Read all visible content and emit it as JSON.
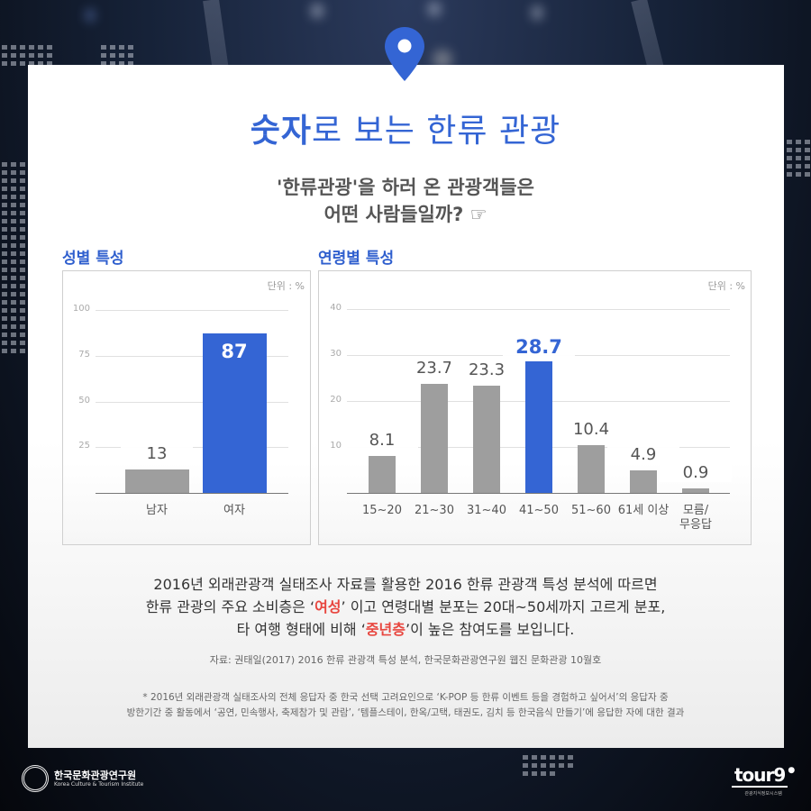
{
  "header": {
    "title_bold": "숫자",
    "title_rest": "로 보는 한류 관광",
    "subtitle_line1": "'한류관광'을 하러 온 관광객들은",
    "subtitle_line2": "어떤 사람들일까? ☞",
    "accent_color": "#3465d4"
  },
  "gender_section": {
    "label": "성별 특성",
    "unit": "단위 : %"
  },
  "age_section": {
    "label": "연령별 특성",
    "unit": "단위 : %"
  },
  "chart_data": [
    {
      "type": "bar",
      "title": "성별 특성",
      "unit": "단위 : %",
      "categories": [
        "남자",
        "여자"
      ],
      "values": [
        13,
        87
      ],
      "value_labels": [
        "13",
        "87"
      ],
      "highlight_index": 1,
      "colors": {
        "default": "#9e9e9e",
        "highlight": "#3465d4"
      },
      "yticks": [
        25,
        50,
        75,
        100
      ],
      "ylim": [
        0,
        100
      ],
      "grid": true,
      "xlabel": "",
      "ylabel": ""
    },
    {
      "type": "bar",
      "title": "연령별 특성",
      "unit": "단위 : %",
      "categories": [
        "15~20",
        "21~30",
        "31~40",
        "41~50",
        "51~60",
        "61세 이상",
        "모름/\n무응답"
      ],
      "values": [
        8.1,
        23.7,
        23.3,
        28.7,
        10.4,
        4.9,
        0.9
      ],
      "value_labels": [
        "8.1",
        "23.7",
        "23.3",
        "28.7",
        "10.4",
        "4.9",
        "0.9"
      ],
      "highlight_index": 3,
      "colors": {
        "default": "#9e9e9e",
        "highlight": "#3465d4"
      },
      "yticks": [
        10,
        20,
        30,
        40
      ],
      "ylim": [
        0,
        40
      ],
      "grid": true,
      "xlabel": "",
      "ylabel": ""
    }
  ],
  "body": {
    "line1": "2016년 외래관광객 실태조사 자료를 활용한 2016 한류 관광객 특성 분석에 따르면",
    "line2_pre": "한류 관광의 주요 소비층은 ‘",
    "line2_hl": "여성",
    "line2_post": "’ 이고 연령대별 분포는 20대~50세까지 고르게 분포,",
    "line3_pre": "타 여행 형태에 비해 ‘",
    "line3_hl": "중년층",
    "line3_post": "’이 높은 참여도를 보입니다.",
    "highlight_color": "#e8463f"
  },
  "source": "자료: 권태일(2017) 2016 한류 관광객 특성 분석, 한국문화관광연구원 웹진 문화관광 10월호",
  "note": {
    "line1": "* 2016년 외래관광객 실태조사의 전체 응답자 중 한국 선택 고려요인으로 ‘K-POP 등 한류 이벤트 등을 경험하고 싶어서’의 응답자 중",
    "line2": "방한기간 중 활동에서 ‘공연, 민속행사, 축제참가 및 관람’, ‘템플스테이, 한옥/고택, 태권도, 김치 등 한국음식 만들기’에 응답한 자에 대한 결과"
  },
  "footer": {
    "kcti_name": "한국문화관광연구원",
    "kcti_english": "Korea Culture & Tourism Institute",
    "tour_logo": "tour9",
    "tour_sub": "관광지식정보시스템"
  }
}
